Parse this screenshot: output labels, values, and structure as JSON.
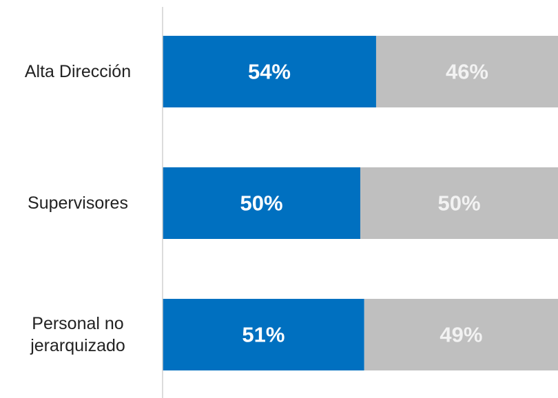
{
  "chart_data": {
    "type": "stacked-bar-horizontal",
    "categories": [
      "Alta Dirección",
      "Supervisores",
      "Personal no jerarquizado"
    ],
    "series": [
      {
        "color": "#0070c0",
        "values": [
          54,
          50,
          51
        ],
        "value_labels": [
          "54%",
          "50%",
          "51%"
        ]
      },
      {
        "color": "#bfbfbf",
        "values": [
          46,
          50,
          49
        ],
        "value_labels": [
          "46%",
          "50%",
          "49%"
        ]
      }
    ],
    "xlim": [
      0,
      100
    ]
  }
}
